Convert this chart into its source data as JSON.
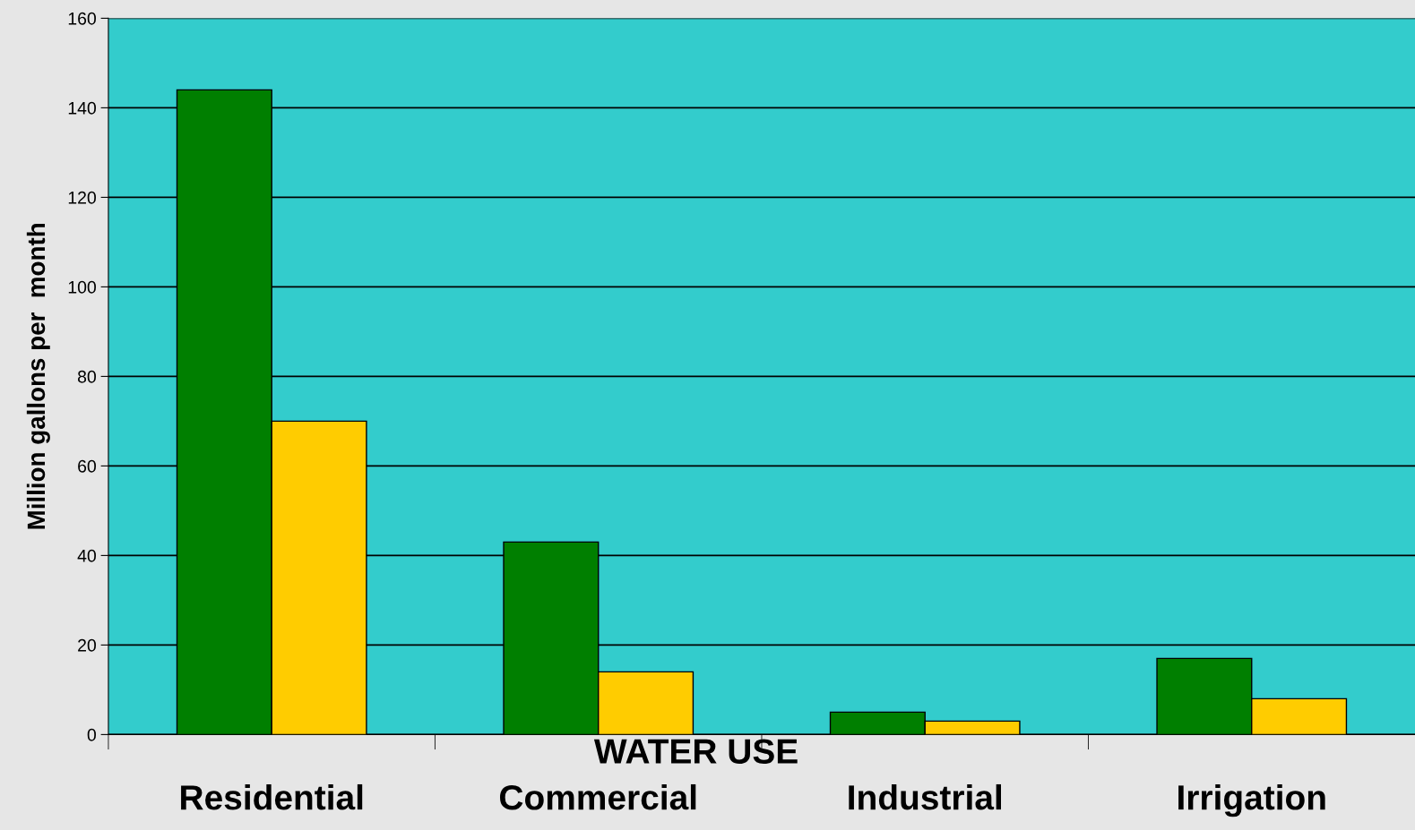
{
  "chart_data": {
    "type": "bar",
    "xlabel": "WATER USE",
    "ylabel": "Million gallons per  month",
    "categories": [
      "Residential",
      "Commercial",
      "Industrial",
      "Irrigation"
    ],
    "series": [
      {
        "color": "#007f00",
        "values": [
          144,
          43,
          5,
          17
        ]
      },
      {
        "color": "#ffcc00",
        "values": [
          70,
          14,
          3,
          8
        ]
      }
    ],
    "ylim": [
      0,
      160
    ],
    "yticks": [
      0,
      20,
      40,
      60,
      80,
      100,
      120,
      140,
      160
    ],
    "grid": "y",
    "legend": false
  }
}
